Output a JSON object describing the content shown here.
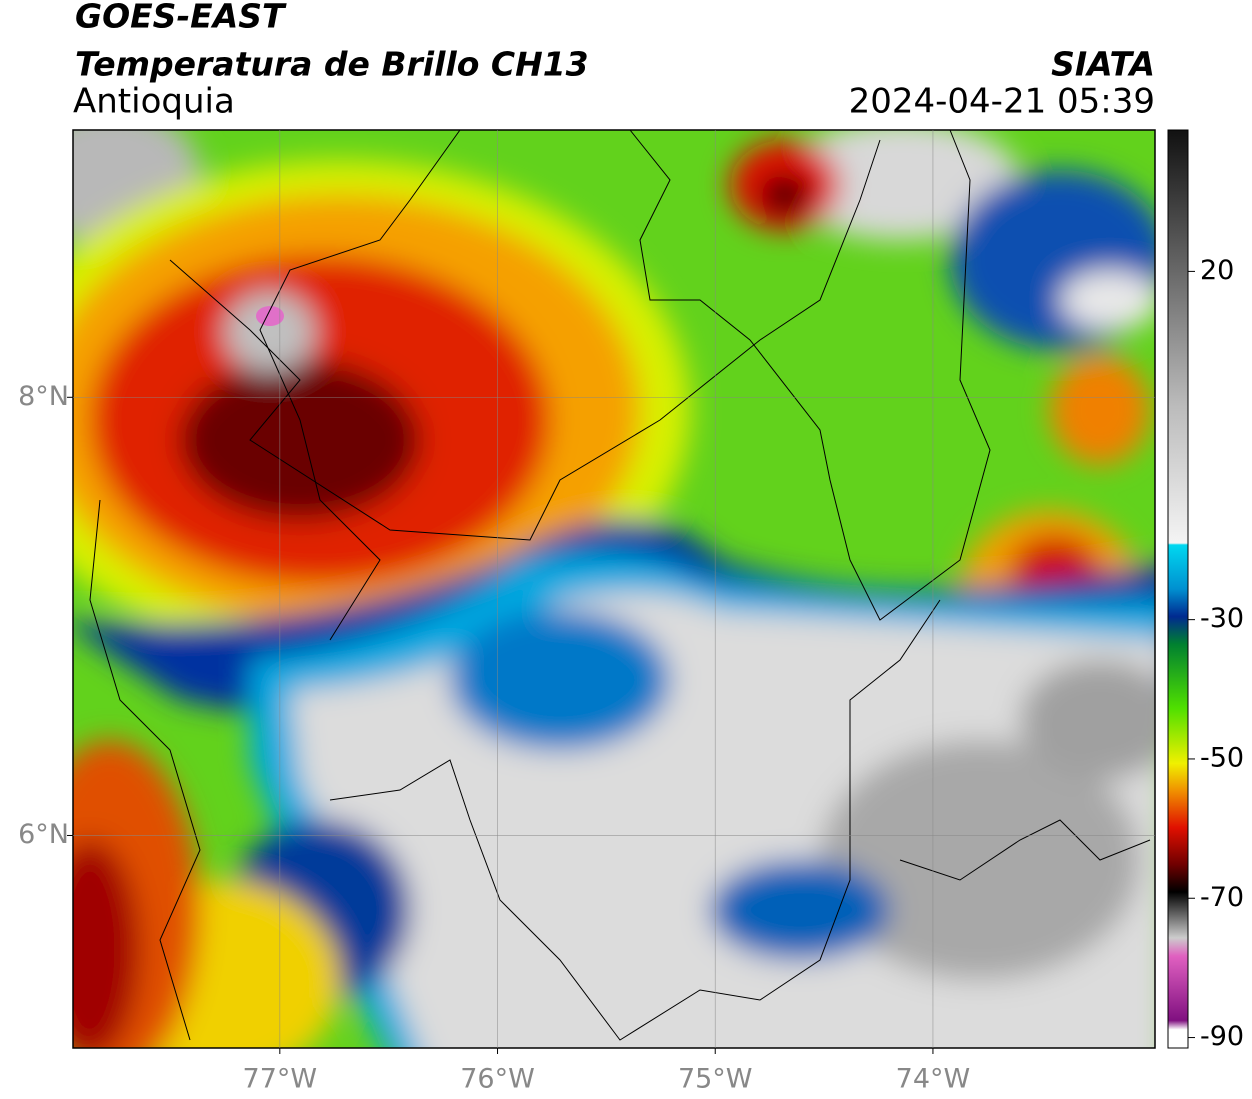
{
  "header": {
    "title": "GOES-EAST",
    "subtitle": "Temperatura de Brillo CH13",
    "region": "Antioquia",
    "source": "SIATA",
    "datetime": "2024-04-21 05:39"
  },
  "map": {
    "xlim": [
      -77.95,
      -72.98
    ],
    "ylim": [
      5.03,
      9.22
    ],
    "xticks": [
      {
        "value": -77,
        "label": "77°W"
      },
      {
        "value": -76,
        "label": "76°W"
      },
      {
        "value": -75,
        "label": "75°W"
      },
      {
        "value": -74,
        "label": "74°W"
      }
    ],
    "yticks": [
      {
        "value": 8,
        "label": "8°N"
      },
      {
        "value": 6,
        "label": "6°N"
      }
    ],
    "grid": true
  },
  "colorbar": {
    "clim": [
      -91.5,
      40.3
    ],
    "ticks": [
      20,
      -30,
      -50,
      -70,
      -90
    ]
  }
}
